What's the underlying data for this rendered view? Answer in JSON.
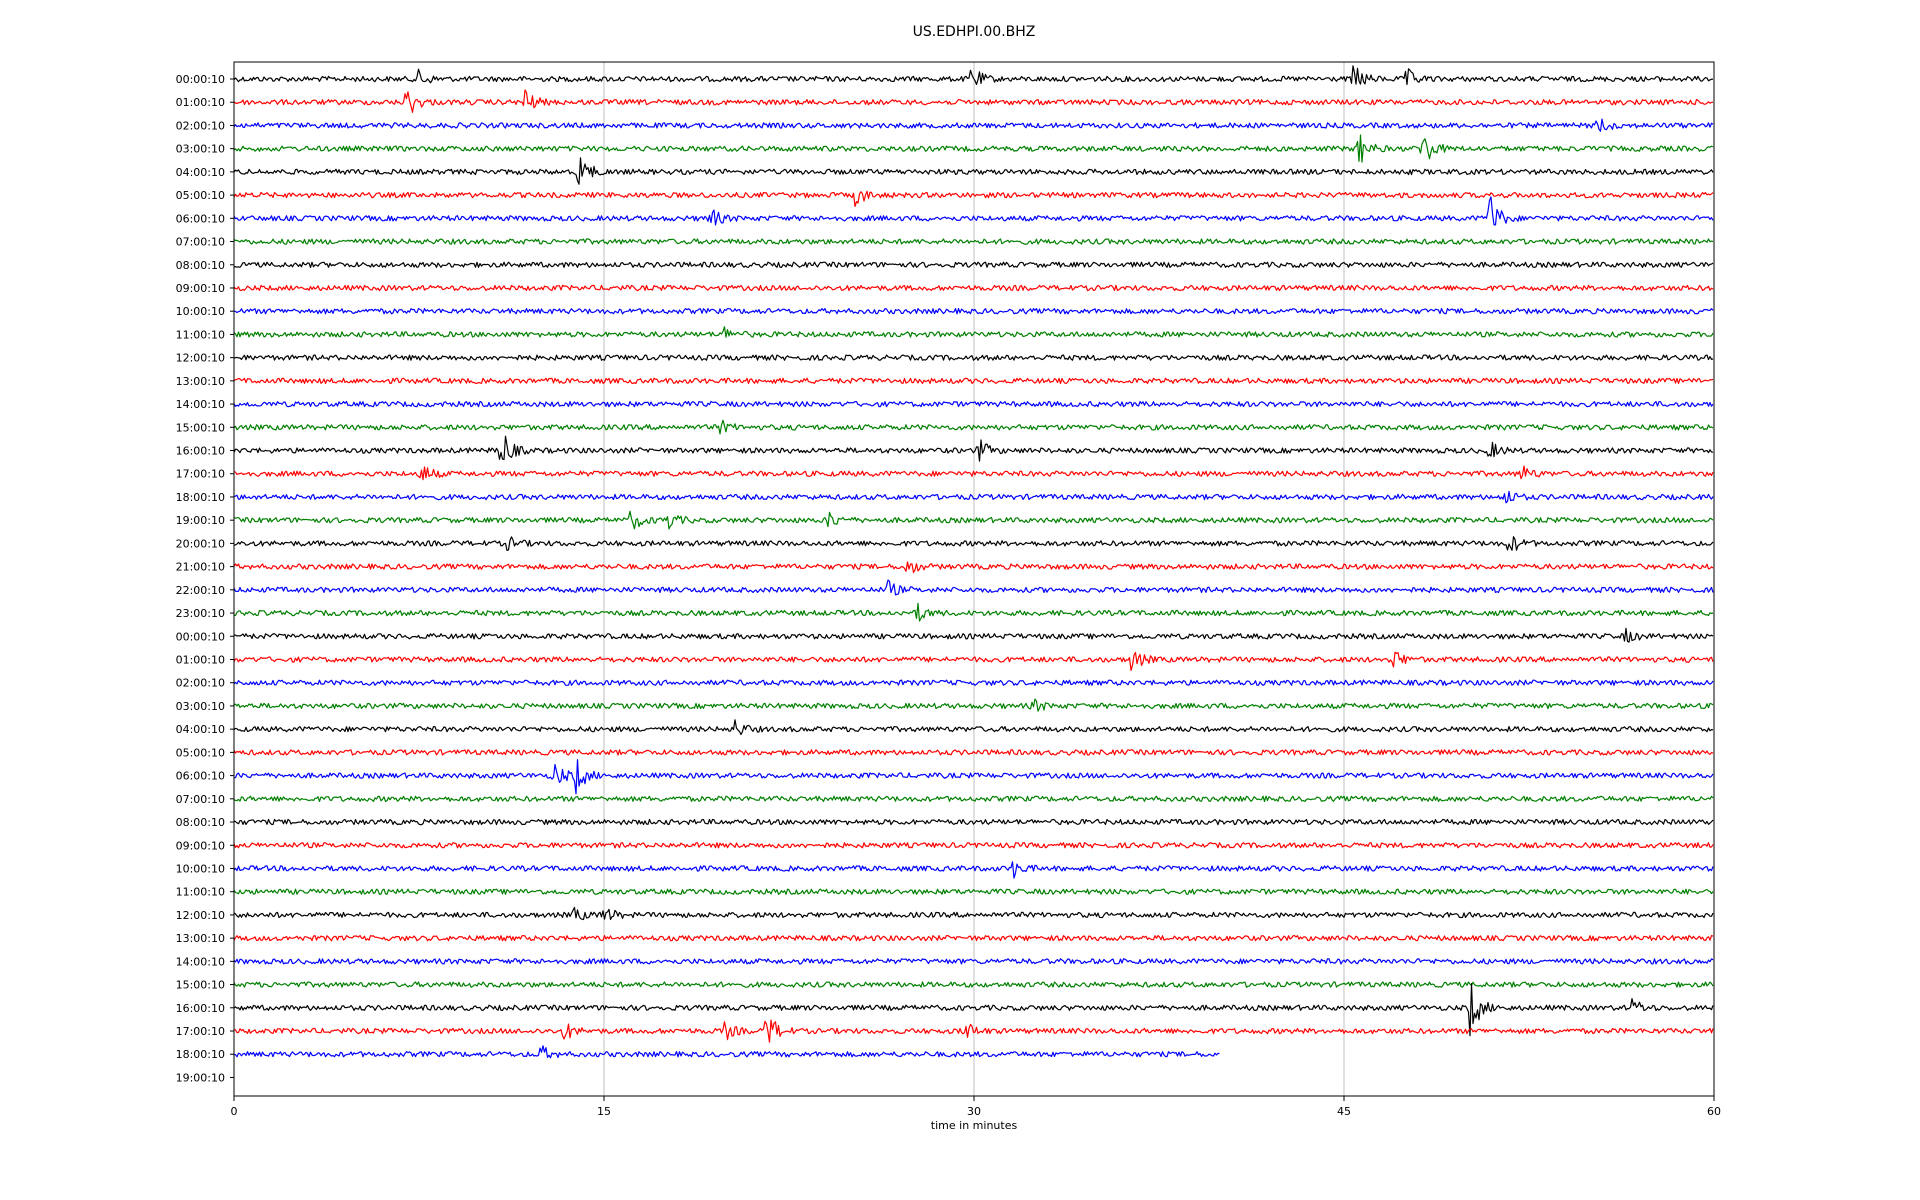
{
  "chart_data": {
    "type": "line",
    "title": "US.EDHPI.00.BHZ",
    "xlabel": "time in minutes",
    "ylabel": "",
    "xlim": [
      0,
      60
    ],
    "x_ticks": [
      0,
      15,
      30,
      45,
      60
    ],
    "grid": "vertical lines at x ticks",
    "trace_color_cycle": [
      "#000000",
      "#ff0000",
      "#0000ff",
      "#008000"
    ],
    "row_labels": [
      "00:00:10",
      "01:00:10",
      "02:00:10",
      "03:00:10",
      "04:00:10",
      "05:00:10",
      "06:00:10",
      "07:00:10",
      "08:00:10",
      "09:00:10",
      "10:00:10",
      "11:00:10",
      "12:00:10",
      "13:00:10",
      "14:00:10",
      "15:00:10",
      "16:00:10",
      "17:00:10",
      "18:00:10",
      "19:00:10",
      "20:00:10",
      "21:00:10",
      "22:00:10",
      "23:00:10",
      "00:00:10",
      "01:00:10",
      "02:00:10",
      "03:00:10",
      "04:00:10",
      "05:00:10",
      "06:00:10",
      "07:00:10",
      "08:00:10",
      "09:00:10",
      "10:00:10",
      "11:00:10",
      "12:00:10",
      "13:00:10",
      "14:00:10",
      "15:00:10",
      "16:00:10",
      "17:00:10",
      "18:00:10",
      "19:00:10"
    ],
    "trace_end_minutes": [
      60,
      60,
      60,
      60,
      60,
      60,
      60,
      60,
      60,
      60,
      60,
      60,
      60,
      60,
      60,
      60,
      60,
      60,
      60,
      60,
      60,
      60,
      60,
      60,
      60,
      60,
      60,
      60,
      60,
      60,
      60,
      60,
      60,
      60,
      60,
      60,
      60,
      60,
      60,
      60,
      60,
      60,
      40,
      0
    ],
    "events": [
      {
        "row": 0,
        "minute": 7.5,
        "amplitude": 0.4
      },
      {
        "row": 0,
        "minute": 29.9,
        "amplitude": 0.6
      },
      {
        "row": 0,
        "minute": 45.4,
        "amplitude": 0.7
      },
      {
        "row": 0,
        "minute": 47.5,
        "amplitude": 0.5
      },
      {
        "row": 1,
        "minute": 7.0,
        "amplitude": 0.8
      },
      {
        "row": 1,
        "minute": 11.8,
        "amplitude": 0.6
      },
      {
        "row": 2,
        "minute": 55.3,
        "amplitude": 0.4
      },
      {
        "row": 3,
        "minute": 45.6,
        "amplitude": 0.8
      },
      {
        "row": 3,
        "minute": 48.2,
        "amplitude": 1.0
      },
      {
        "row": 4,
        "minute": 14.0,
        "amplitude": 0.9
      },
      {
        "row": 5,
        "minute": 25.2,
        "amplitude": 0.5
      },
      {
        "row": 6,
        "minute": 19.3,
        "amplitude": 0.5
      },
      {
        "row": 6,
        "minute": 50.9,
        "amplitude": 1.2
      },
      {
        "row": 11,
        "minute": 19.9,
        "amplitude": 0.3
      },
      {
        "row": 15,
        "minute": 19.7,
        "amplitude": 0.3
      },
      {
        "row": 16,
        "minute": 10.8,
        "amplitude": 1.2
      },
      {
        "row": 16,
        "minute": 30.2,
        "amplitude": 0.5
      },
      {
        "row": 16,
        "minute": 50.9,
        "amplitude": 0.4
      },
      {
        "row": 17,
        "minute": 7.6,
        "amplitude": 0.5
      },
      {
        "row": 17,
        "minute": 52.2,
        "amplitude": 0.4
      },
      {
        "row": 18,
        "minute": 51.5,
        "amplitude": 0.4
      },
      {
        "row": 19,
        "minute": 16.1,
        "amplitude": 0.5
      },
      {
        "row": 19,
        "minute": 17.5,
        "amplitude": 0.5
      },
      {
        "row": 19,
        "minute": 24.1,
        "amplitude": 0.4
      },
      {
        "row": 20,
        "minute": 11.1,
        "amplitude": 0.3
      },
      {
        "row": 20,
        "minute": 51.7,
        "amplitude": 0.5
      },
      {
        "row": 21,
        "minute": 27.3,
        "amplitude": 0.4
      },
      {
        "row": 22,
        "minute": 26.5,
        "amplitude": 0.4
      },
      {
        "row": 23,
        "minute": 27.7,
        "amplitude": 0.4
      },
      {
        "row": 24,
        "minute": 56.4,
        "amplitude": 0.3
      },
      {
        "row": 25,
        "minute": 36.4,
        "amplitude": 0.6
      },
      {
        "row": 25,
        "minute": 47.0,
        "amplitude": 0.5
      },
      {
        "row": 27,
        "minute": 32.4,
        "amplitude": 0.3
      },
      {
        "row": 28,
        "minute": 20.3,
        "amplitude": 0.4
      },
      {
        "row": 30,
        "minute": 13.0,
        "amplitude": 0.6
      },
      {
        "row": 30,
        "minute": 13.8,
        "amplitude": 1.0
      },
      {
        "row": 34,
        "minute": 31.6,
        "amplitude": 0.4
      },
      {
        "row": 36,
        "minute": 13.8,
        "amplitude": 0.3
      },
      {
        "row": 36,
        "minute": 15.0,
        "amplitude": 0.4
      },
      {
        "row": 40,
        "minute": 50.1,
        "amplitude": 1.4
      },
      {
        "row": 40,
        "minute": 56.7,
        "amplitude": 0.4
      },
      {
        "row": 41,
        "minute": 13.4,
        "amplitude": 0.4
      },
      {
        "row": 41,
        "minute": 19.9,
        "amplitude": 0.4
      },
      {
        "row": 41,
        "minute": 21.6,
        "amplitude": 1.0
      },
      {
        "row": 41,
        "minute": 29.6,
        "amplitude": 0.5
      },
      {
        "row": 42,
        "minute": 12.4,
        "amplitude": 0.4
      }
    ]
  }
}
